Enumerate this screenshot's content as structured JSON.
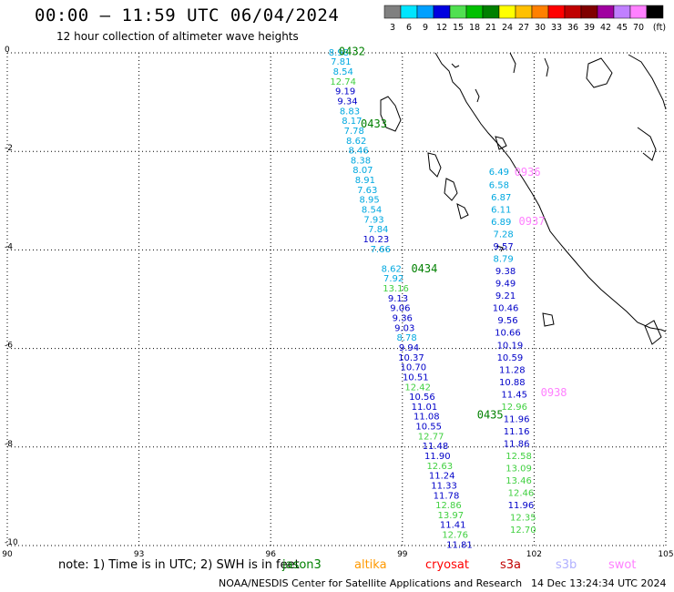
{
  "title": "00:00 – 11:59 UTC 06/04/2024",
  "subtitle": "12 hour collection of altimeter wave heights",
  "colorbar": {
    "unit": "(ft)",
    "bins": [
      {
        "label": "3",
        "color": "#808080"
      },
      {
        "label": "6",
        "color": "#00e5ff"
      },
      {
        "label": "9",
        "color": "#00a0ff"
      },
      {
        "label": "12",
        "color": "#0000e0"
      },
      {
        "label": "15",
        "color": "#50e050"
      },
      {
        "label": "18",
        "color": "#00c000"
      },
      {
        "label": "21",
        "color": "#008000"
      },
      {
        "label": "24",
        "color": "#ffff00"
      },
      {
        "label": "27",
        "color": "#ffc000"
      },
      {
        "label": "30",
        "color": "#ff8000"
      },
      {
        "label": "33",
        "color": "#ff0000"
      },
      {
        "label": "36",
        "color": "#c00000"
      },
      {
        "label": "39",
        "color": "#800000"
      },
      {
        "label": "42",
        "color": "#a000a0"
      },
      {
        "label": "45",
        "color": "#c080ff"
      },
      {
        "label": "70",
        "color": "#ff80ff"
      },
      {
        "label": "",
        "color": "#000000"
      }
    ]
  },
  "axes": {
    "lon_ticks": [
      "90",
      "93",
      "96",
      "99",
      "102",
      "105"
    ],
    "lat_ticks": [
      "0",
      "-2",
      "-4",
      "-6",
      "-8",
      "-10"
    ],
    "lon_range": [
      90,
      105
    ],
    "lat_range": [
      -10,
      0
    ]
  },
  "colors": {
    "cyan": "#00a8e0",
    "blue": "#0000c8",
    "green": "#40d040",
    "dkgreen": "#008000",
    "pink": "#ff80ff",
    "orange": "#ff9900",
    "red": "#ff0000",
    "darkred": "#c00000",
    "lavender": "#b0b0ff"
  },
  "passes": [
    {
      "color_key": "cyan",
      "times": [
        {
          "label": "0432",
          "lon": 97.85,
          "lat": 0.05,
          "color": "dkgreen"
        },
        {
          "label": "0433",
          "lon": 98.35,
          "lat": -1.42,
          "color": "dkgreen"
        },
        {
          "label": "0434",
          "lon": 99.5,
          "lat": -4.36,
          "color": "dkgreen"
        },
        {
          "label": "0435",
          "lon": 101.0,
          "lat": -7.33,
          "color": "dkgreen"
        }
      ],
      "points": [
        {
          "v": "8.98",
          "lon": 97.55,
          "lat": 0.02,
          "c": "cyan"
        },
        {
          "v": "7.81",
          "lon": 97.6,
          "lat": -0.17,
          "c": "cyan"
        },
        {
          "v": "8.54",
          "lon": 97.65,
          "lat": -0.37,
          "c": "cyan"
        },
        {
          "v": "12.74",
          "lon": 97.65,
          "lat": -0.57,
          "c": "green"
        },
        {
          "v": "9.19",
          "lon": 97.7,
          "lat": -0.77,
          "c": "blue"
        },
        {
          "v": "9.34",
          "lon": 97.75,
          "lat": -0.97,
          "c": "blue"
        },
        {
          "v": "8.83",
          "lon": 97.8,
          "lat": -1.17,
          "c": "cyan"
        },
        {
          "v": "8.17",
          "lon": 97.85,
          "lat": -1.37,
          "c": "cyan"
        },
        {
          "v": "7.78",
          "lon": 97.9,
          "lat": -1.57,
          "c": "cyan"
        },
        {
          "v": "8.62",
          "lon": 97.95,
          "lat": -1.77,
          "c": "cyan"
        },
        {
          "v": "8.46",
          "lon": 98.0,
          "lat": -1.97,
          "c": "cyan"
        },
        {
          "v": "8.38",
          "lon": 98.05,
          "lat": -2.17,
          "c": "cyan"
        },
        {
          "v": "8.07",
          "lon": 98.1,
          "lat": -2.37,
          "c": "cyan"
        },
        {
          "v": "8.91",
          "lon": 98.15,
          "lat": -2.57,
          "c": "cyan"
        },
        {
          "v": "7.63",
          "lon": 98.2,
          "lat": -2.77,
          "c": "cyan"
        },
        {
          "v": "8.95",
          "lon": 98.25,
          "lat": -2.97,
          "c": "cyan"
        },
        {
          "v": "8.54",
          "lon": 98.3,
          "lat": -3.17,
          "c": "cyan"
        },
        {
          "v": "7.93",
          "lon": 98.35,
          "lat": -3.37,
          "c": "cyan"
        },
        {
          "v": "7.84",
          "lon": 98.45,
          "lat": -3.57,
          "c": "cyan"
        },
        {
          "v": "10.23",
          "lon": 98.4,
          "lat": -3.77,
          "c": "blue"
        },
        {
          "v": "7.66",
          "lon": 98.5,
          "lat": -3.97,
          "c": "cyan"
        },
        {
          "v": "8.62",
          "lon": 98.75,
          "lat": -4.37,
          "c": "cyan"
        },
        {
          "v": "7.92",
          "lon": 98.8,
          "lat": -4.57,
          "c": "cyan"
        },
        {
          "v": "13.16",
          "lon": 98.85,
          "lat": -4.77,
          "c": "green"
        },
        {
          "v": "9.13",
          "lon": 98.9,
          "lat": -4.97,
          "c": "blue"
        },
        {
          "v": "9.06",
          "lon": 98.95,
          "lat": -5.17,
          "c": "blue"
        },
        {
          "v": "9.36",
          "lon": 99.0,
          "lat": -5.37,
          "c": "blue"
        },
        {
          "v": "9.03",
          "lon": 99.05,
          "lat": -5.57,
          "c": "blue"
        },
        {
          "v": "8.78",
          "lon": 99.1,
          "lat": -5.77,
          "c": "cyan"
        },
        {
          "v": "9.94",
          "lon": 99.15,
          "lat": -5.97,
          "c": "blue"
        },
        {
          "v": "10.37",
          "lon": 99.2,
          "lat": -6.17,
          "c": "blue"
        },
        {
          "v": "10.70",
          "lon": 99.25,
          "lat": -6.37,
          "c": "blue"
        },
        {
          "v": "10.51",
          "lon": 99.3,
          "lat": -6.57,
          "c": "blue"
        },
        {
          "v": "12.42",
          "lon": 99.35,
          "lat": -6.77,
          "c": "green"
        },
        {
          "v": "10.56",
          "lon": 99.45,
          "lat": -6.97,
          "c": "blue"
        },
        {
          "v": "11.01",
          "lon": 99.5,
          "lat": -7.17,
          "c": "blue"
        },
        {
          "v": "11.08",
          "lon": 99.55,
          "lat": -7.37,
          "c": "blue"
        },
        {
          "v": "10.55",
          "lon": 99.6,
          "lat": -7.57,
          "c": "blue"
        },
        {
          "v": "12.77",
          "lon": 99.65,
          "lat": -7.77,
          "c": "green"
        },
        {
          "v": "11.48",
          "lon": 99.75,
          "lat": -7.97,
          "c": "blue"
        },
        {
          "v": "11.90",
          "lon": 99.8,
          "lat": -8.17,
          "c": "blue"
        },
        {
          "v": "12.63",
          "lon": 99.85,
          "lat": -8.37,
          "c": "green"
        },
        {
          "v": "11.24",
          "lon": 99.9,
          "lat": -8.57,
          "c": "blue"
        },
        {
          "v": "11.33",
          "lon": 99.95,
          "lat": -8.77,
          "c": "blue"
        },
        {
          "v": "11.78",
          "lon": 100.0,
          "lat": -8.97,
          "c": "blue"
        },
        {
          "v": "12.86",
          "lon": 100.05,
          "lat": -9.17,
          "c": "green"
        },
        {
          "v": "13.97",
          "lon": 100.1,
          "lat": -9.37,
          "c": "green"
        },
        {
          "v": "11.41",
          "lon": 100.15,
          "lat": -9.57,
          "c": "blue"
        },
        {
          "v": "12.76",
          "lon": 100.2,
          "lat": -9.77,
          "c": "green"
        },
        {
          "v": "11.81",
          "lon": 100.3,
          "lat": -9.97,
          "c": "blue"
        }
      ]
    },
    {
      "color_key": "cyan",
      "times": [
        {
          "label": "0936",
          "lon": 101.85,
          "lat": -2.4,
          "color": "pink"
        },
        {
          "label": "0937",
          "lon": 101.95,
          "lat": -3.4,
          "color": "pink"
        },
        {
          "label": "0938",
          "lon": 102.45,
          "lat": -6.88,
          "color": "pink"
        }
      ],
      "points": [
        {
          "v": "6.49",
          "lon": 101.2,
          "lat": -2.4,
          "c": "cyan"
        },
        {
          "v": "6.58",
          "lon": 101.2,
          "lat": -2.67,
          "c": "cyan"
        },
        {
          "v": "6.87",
          "lon": 101.25,
          "lat": -2.92,
          "c": "cyan"
        },
        {
          "v": "6.11",
          "lon": 101.25,
          "lat": -3.17,
          "c": "cyan"
        },
        {
          "v": "6.89",
          "lon": 101.25,
          "lat": -3.42,
          "c": "cyan"
        },
        {
          "v": "7.28",
          "lon": 101.3,
          "lat": -3.67,
          "c": "cyan"
        },
        {
          "v": "9.57",
          "lon": 101.3,
          "lat": -3.92,
          "c": "blue"
        },
        {
          "v": "8.79",
          "lon": 101.3,
          "lat": -4.17,
          "c": "cyan"
        },
        {
          "v": "9.38",
          "lon": 101.35,
          "lat": -4.42,
          "c": "blue"
        },
        {
          "v": "9.49",
          "lon": 101.35,
          "lat": -4.67,
          "c": "blue"
        },
        {
          "v": "9.21",
          "lon": 101.35,
          "lat": -4.92,
          "c": "blue"
        },
        {
          "v": "10.46",
          "lon": 101.35,
          "lat": -5.17,
          "c": "blue"
        },
        {
          "v": "9.56",
          "lon": 101.4,
          "lat": -5.42,
          "c": "blue"
        },
        {
          "v": "10.66",
          "lon": 101.4,
          "lat": -5.67,
          "c": "blue"
        },
        {
          "v": "10.19",
          "lon": 101.45,
          "lat": -5.92,
          "c": "blue"
        },
        {
          "v": "10.59",
          "lon": 101.45,
          "lat": -6.17,
          "c": "blue"
        },
        {
          "v": "11.28",
          "lon": 101.5,
          "lat": -6.42,
          "c": "blue"
        },
        {
          "v": "10.88",
          "lon": 101.5,
          "lat": -6.67,
          "c": "blue"
        },
        {
          "v": "11.45",
          "lon": 101.55,
          "lat": -6.92,
          "c": "blue"
        },
        {
          "v": "12.96",
          "lon": 101.55,
          "lat": -7.17,
          "c": "green"
        },
        {
          "v": "11.96",
          "lon": 101.6,
          "lat": -7.42,
          "c": "blue"
        },
        {
          "v": "11.16",
          "lon": 101.6,
          "lat": -7.67,
          "c": "blue"
        },
        {
          "v": "11.86",
          "lon": 101.6,
          "lat": -7.92,
          "c": "blue"
        },
        {
          "v": "12.58",
          "lon": 101.65,
          "lat": -8.17,
          "c": "green"
        },
        {
          "v": "13.09",
          "lon": 101.65,
          "lat": -8.42,
          "c": "green"
        },
        {
          "v": "13.46",
          "lon": 101.65,
          "lat": -8.67,
          "c": "green"
        },
        {
          "v": "12.46",
          "lon": 101.7,
          "lat": -8.92,
          "c": "green"
        },
        {
          "v": "11.96",
          "lon": 101.7,
          "lat": -9.17,
          "c": "blue"
        },
        {
          "v": "12.35",
          "lon": 101.75,
          "lat": -9.42,
          "c": "green"
        },
        {
          "v": "12.70",
          "lon": 101.75,
          "lat": -9.67,
          "c": "green"
        }
      ]
    }
  ],
  "footer": {
    "note": "note:  1) Time is in UTC; 2) SWH is in feet",
    "satellites": [
      {
        "name": "jason3",
        "color": "#008000"
      },
      {
        "name": "altika",
        "color": "#ff9900"
      },
      {
        "name": "cryosat",
        "color": "#ff0000"
      },
      {
        "name": "s3a",
        "color": "#c00000"
      },
      {
        "name": "s3b",
        "color": "#b0b0ff"
      },
      {
        "name": "swot",
        "color": "#ff80ff"
      }
    ],
    "credit": "NOAA/NESDIS Center for Satellite Applications and Research",
    "timestamp": "14 Dec 13:24:34 UTC 2024"
  }
}
